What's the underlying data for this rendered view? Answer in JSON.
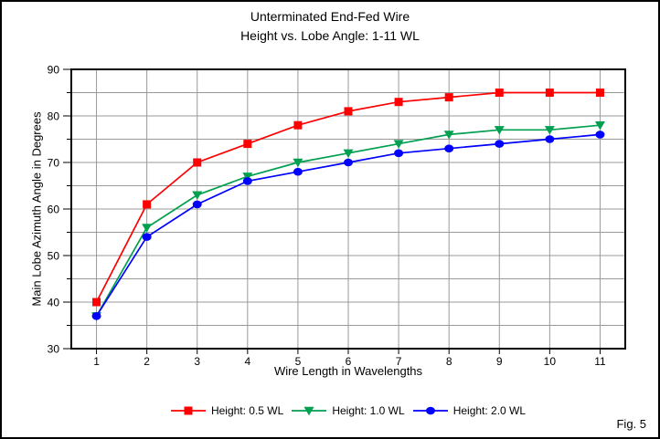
{
  "figure": {
    "caption": "Fig. 5"
  },
  "chart_data": {
    "type": "line",
    "title": "Unterminated End-Fed Wire",
    "subtitle": "Height vs. Lobe Angle: 1-11 WL",
    "xlabel": "Wire Length in Wavelengths",
    "ylabel": "Main Lobe Azimuth Angle in Degrees",
    "x": [
      1,
      2,
      3,
      4,
      5,
      6,
      7,
      8,
      9,
      10,
      11
    ],
    "xlim": [
      0.5,
      11.5
    ],
    "ylim": [
      30,
      90
    ],
    "x_ticks": [
      1,
      2,
      3,
      4,
      5,
      6,
      7,
      8,
      9,
      10,
      11
    ],
    "y_ticks": [
      30,
      40,
      50,
      60,
      70,
      80,
      90
    ],
    "y_minor_step": 5,
    "grid": true,
    "grid_color": "#999999",
    "axis_color": "#000000",
    "legend_position": "bottom",
    "series": [
      {
        "name": "Height: 0.5 WL",
        "color": "#ff0000",
        "marker": "square",
        "values": [
          40,
          61,
          70,
          74,
          78,
          81,
          83,
          84,
          85,
          85,
          85
        ]
      },
      {
        "name": "Height: 1.0 WL",
        "color": "#00a050",
        "marker": "triangle-down",
        "values": [
          37,
          56,
          63,
          67,
          70,
          72,
          74,
          76,
          77,
          77,
          78
        ]
      },
      {
        "name": "Height: 2.0 WL",
        "color": "#0000ff",
        "marker": "circle",
        "values": [
          37,
          54,
          61,
          66,
          68,
          70,
          72,
          73,
          74,
          75,
          76
        ]
      }
    ]
  }
}
